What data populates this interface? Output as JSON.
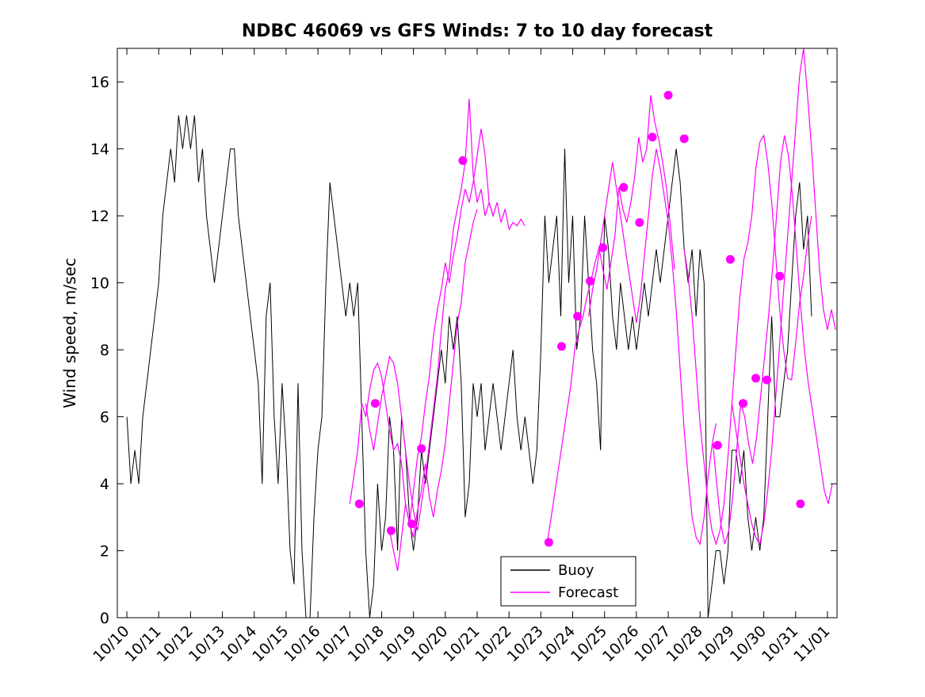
{
  "chart_data": {
    "type": "line",
    "title": "NDBC 46069 vs GFS Winds: 7 to 10 day forecast",
    "xlabel": "",
    "ylabel": "Wind speed, m/sec",
    "xlim": [
      -0.3,
      22.3
    ],
    "ylim": [
      0,
      17
    ],
    "grid": false,
    "yticks": [
      0,
      2,
      4,
      6,
      8,
      10,
      12,
      14,
      16
    ],
    "xtick_labels": [
      "10/10",
      "10/11",
      "10/12",
      "10/13",
      "10/14",
      "10/15",
      "10/16",
      "10/17",
      "10/18",
      "10/19",
      "10/20",
      "10/21",
      "10/22",
      "10/23",
      "10/24",
      "10/25",
      "10/26",
      "10/27",
      "10/28",
      "10/29",
      "10/30",
      "10/31",
      "11/01"
    ],
    "colors": {
      "buoy": "#000000",
      "forecast": "#FF00FF"
    },
    "legend": {
      "position": "south-center-right",
      "entries": [
        {
          "label": "Buoy",
          "color": "#000000"
        },
        {
          "label": "Forecast",
          "color": "#FF00FF"
        }
      ]
    },
    "buoy": {
      "name": "Buoy",
      "t_start": 0,
      "dt": 0.125,
      "values": [
        6,
        4,
        5,
        4,
        6,
        7,
        8,
        9,
        10,
        12,
        13,
        14,
        13,
        15,
        14,
        15,
        14,
        15,
        13,
        14,
        12,
        11,
        10,
        11,
        12,
        13,
        14,
        14,
        12,
        11,
        10,
        9,
        8,
        7,
        4,
        9,
        10,
        6,
        4,
        7,
        5,
        2,
        1,
        7,
        2,
        0,
        0,
        3,
        5,
        6,
        10,
        13,
        12,
        11,
        10,
        9,
        10,
        9,
        10,
        6,
        2,
        0,
        1,
        4,
        2,
        3,
        6,
        5,
        2,
        6,
        5,
        3,
        2,
        3,
        5,
        4,
        5,
        6,
        7,
        8,
        7,
        9,
        8,
        9,
        7,
        3,
        4,
        7,
        6,
        7,
        5,
        6,
        7,
        6,
        5,
        6,
        7,
        8,
        6,
        5,
        6,
        5,
        4,
        5,
        8,
        12,
        10,
        11,
        12,
        9,
        14,
        10,
        12,
        8,
        9,
        12,
        10,
        8,
        7,
        5,
        12,
        11,
        9,
        8,
        10,
        9,
        8,
        9,
        8,
        9,
        10,
        9,
        10,
        11,
        10,
        11,
        12,
        13,
        14,
        13,
        11,
        10,
        11,
        9,
        11,
        10,
        0,
        1,
        2,
        2,
        1,
        2,
        5,
        5,
        4,
        5,
        3,
        2,
        3,
        2,
        3,
        6,
        9,
        6,
        6,
        7,
        8,
        10,
        12,
        13,
        11,
        12,
        9
      ]
    },
    "forecast_lines": [
      {
        "t_start": 7.0,
        "dt": 0.125,
        "values": [
          3.4,
          4.2,
          5.0,
          6.4,
          6.0,
          6.8,
          7.4,
          7.6,
          7.2,
          6.4,
          5.6,
          5.0,
          5.2,
          4.6,
          3.4,
          2.8,
          2.4,
          3.2,
          3.8,
          4.6,
          3.6,
          3.0,
          3.8,
          4.4,
          5.2,
          6.4,
          7.6,
          8.8,
          9.4,
          10.6,
          11.2,
          11.8,
          12.2
        ]
      },
      {
        "t_start": 7.5,
        "dt": 0.125,
        "values": [
          6.4,
          5.6,
          5.0,
          5.8,
          6.6,
          7.2,
          7.8,
          7.6,
          7.0,
          6.0,
          5.0,
          4.0,
          3.2,
          2.6,
          3.4,
          4.2,
          5.2,
          6.2,
          7.2,
          8.6,
          9.8,
          10.4,
          11.6,
          12.2,
          12.8,
          13.6,
          15.5,
          13.2,
          12.4,
          12.8,
          12.0,
          12.4,
          12.0
        ]
      },
      {
        "t_start": 8.25,
        "dt": 0.125,
        "values": [
          2.6,
          2.0,
          1.4,
          2.4,
          3.4,
          2.8,
          3.8,
          4.8,
          5.4,
          6.4,
          7.2,
          8.4,
          9.2,
          9.8,
          10.6,
          10.0,
          10.8,
          11.4,
          12.2,
          12.8,
          12.4,
          13.0,
          13.8,
          14.6,
          13.8,
          12.4,
          12.0,
          12.4,
          11.8,
          12.2,
          11.6,
          11.8,
          11.7,
          11.9,
          11.7
        ]
      },
      {
        "t_start": 13.2,
        "dt": 0.125,
        "values": [
          2.25,
          3.0,
          3.8,
          4.6,
          5.4,
          6.2,
          7.0,
          8.1,
          8.6,
          9.0,
          9.6,
          10.05,
          10.6,
          11.05,
          10.4,
          9.8,
          10.6,
          11.4,
          12.85,
          12.2,
          11.8,
          12.4,
          13.2,
          14.35,
          13.6,
          14.0,
          15.6,
          14.8,
          14.3,
          13.6,
          12.8,
          11.6,
          10.4
        ]
      },
      {
        "t_start": 14.5,
        "dt": 0.125,
        "values": [
          9.0,
          9.8,
          10.4,
          11.2,
          12.0,
          12.8,
          13.6,
          12.8,
          12.0,
          11.2,
          10.4,
          9.6,
          8.8,
          9.6,
          10.8,
          12.0,
          13.2,
          14.0,
          13.4,
          12.6,
          11.8,
          10.6,
          9.2,
          7.4,
          5.6,
          4.2,
          3.0,
          2.4,
          2.2,
          3.0,
          4.2,
          5.15,
          5.8
        ]
      },
      {
        "t_start": 17.5,
        "dt": 0.125,
        "values": [
          11.0,
          10.2,
          9.0,
          7.4,
          5.8,
          4.6,
          3.4,
          2.6,
          2.2,
          2.6,
          3.4,
          4.8,
          6.4,
          8.0,
          9.6,
          10.7,
          11.2,
          12.0,
          13.4,
          14.2,
          14.4,
          13.6,
          12.4,
          10.8,
          9.2,
          8.0,
          7.15,
          7.1,
          8.2,
          9.4,
          10.2,
          11.2,
          12.0
        ]
      },
      {
        "t_start": 18.4,
        "dt": 0.125,
        "values": [
          5.2,
          4.0,
          2.8,
          2.2,
          2.6,
          3.6,
          5.0,
          6.4,
          6.0,
          5.2,
          4.6,
          5.4,
          6.6,
          7.8,
          9.0,
          10.4,
          12.0,
          13.6,
          14.4,
          13.8,
          12.6,
          11.0,
          9.4,
          8.0,
          7.0,
          6.2,
          5.4,
          4.6,
          3.8,
          3.4,
          4.0
        ]
      },
      {
        "t_start": 19.0,
        "dt": 0.125,
        "values": [
          6.4,
          5.6,
          4.8,
          4.0,
          3.4,
          2.8,
          2.4,
          2.2,
          2.8,
          3.8,
          5.0,
          6.6,
          8.2,
          9.8,
          11.4,
          13.0,
          14.6,
          16.2,
          17.0,
          15.6,
          14.0,
          12.2,
          10.4,
          9.2,
          8.6,
          9.2,
          8.6
        ]
      }
    ],
    "forecast_dots": [
      [
        7.3,
        3.4
      ],
      [
        7.8,
        6.4
      ],
      [
        8.3,
        2.6
      ],
      [
        8.95,
        2.8
      ],
      [
        9.25,
        5.05
      ],
      [
        10.55,
        13.65
      ],
      [
        13.25,
        2.25
      ],
      [
        13.65,
        8.1
      ],
      [
        14.15,
        9.0
      ],
      [
        14.55,
        10.05
      ],
      [
        14.95,
        11.05
      ],
      [
        15.6,
        12.85
      ],
      [
        16.1,
        11.8
      ],
      [
        16.5,
        14.35
      ],
      [
        17.0,
        15.6
      ],
      [
        17.5,
        14.3
      ],
      [
        18.55,
        5.15
      ],
      [
        18.95,
        10.7
      ],
      [
        19.35,
        6.4
      ],
      [
        19.75,
        7.15
      ],
      [
        20.1,
        7.1
      ],
      [
        20.5,
        10.2
      ],
      [
        21.15,
        3.4
      ]
    ]
  }
}
